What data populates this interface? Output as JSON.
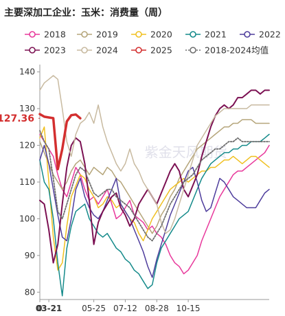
{
  "chart_data": {
    "type": "line",
    "title": "主要深加工企业：玉米：消费量（周）",
    "ylim": [
      78,
      142
    ],
    "yticks": [
      80,
      90,
      100,
      110,
      120,
      130,
      140
    ],
    "xlim": [
      1,
      52
    ],
    "xticks": [
      {
        "x": 1,
        "label": "0"
      },
      {
        "x": 3,
        "label": "03-21",
        "highlight": true
      },
      {
        "x": 13,
        "label": "05-25"
      },
      {
        "x": 20,
        "label": "07-12"
      },
      {
        "x": 27,
        "label": "08-28"
      },
      {
        "x": 34,
        "label": "10-15"
      }
    ],
    "callout": {
      "label": "127.36",
      "value": 127.36,
      "color": "#d32f2f"
    },
    "watermark": "紫金天风期货",
    "series": [
      {
        "name": "2018",
        "color": "#e8389b",
        "dash": "",
        "width": 1.5,
        "marker": "",
        "x": [
          1,
          2,
          3,
          4,
          5,
          6,
          7,
          8,
          9,
          10,
          11,
          12,
          13,
          14,
          15,
          16,
          17,
          18,
          19,
          20,
          21,
          22,
          23,
          24,
          25,
          26,
          27,
          28,
          29,
          30,
          31,
          32,
          33,
          34,
          35,
          36,
          37,
          38,
          39,
          40,
          41,
          42,
          43,
          44,
          45,
          46,
          47,
          48,
          49,
          50,
          51,
          52
        ],
        "y": [
          123,
          121,
          119,
          117,
          112,
          108,
          106,
          110,
          114,
          112,
          108,
          105,
          106,
          104,
          106,
          108,
          104,
          100,
          101,
          103,
          105,
          101,
          100,
          99,
          97,
          98,
          96,
          95,
          93,
          90,
          88,
          87,
          85,
          86,
          88,
          90,
          94,
          97,
          100,
          103,
          106,
          108,
          110,
          112,
          113,
          113,
          114,
          115,
          116,
          117,
          118,
          120
        ]
      },
      {
        "name": "2019",
        "color": "#b5a57a",
        "dash": "",
        "width": 1.5,
        "marker": "",
        "x": [
          1,
          2,
          3,
          4,
          5,
          6,
          7,
          8,
          9,
          10,
          11,
          12,
          13,
          14,
          15,
          16,
          17,
          18,
          19,
          20,
          21,
          22,
          23,
          24,
          25,
          26,
          27,
          28,
          29,
          30,
          31,
          32,
          33,
          34,
          35,
          36,
          37,
          38,
          39,
          40,
          41,
          42,
          43,
          44,
          45,
          46,
          47,
          48,
          49,
          50,
          51,
          52
        ],
        "y": [
          121,
          118,
          115,
          112,
          110,
          108,
          110,
          113,
          115,
          116,
          114,
          112,
          114,
          113,
          112,
          114,
          113,
          111,
          110,
          108,
          106,
          104,
          102,
          100,
          98,
          96,
          98,
          101,
          103,
          106,
          108,
          111,
          113,
          115,
          117,
          119,
          120,
          121,
          122,
          123,
          124,
          125,
          125,
          126,
          126,
          127,
          127,
          127,
          126,
          126,
          126,
          126
        ]
      },
      {
        "name": "2020",
        "color": "#f0c020",
        "dash": "",
        "width": 1.5,
        "marker": "",
        "x": [
          1,
          2,
          3,
          4,
          5,
          6,
          7,
          8,
          9,
          10,
          11,
          12,
          13,
          14,
          15,
          16,
          17,
          18,
          19,
          20,
          21,
          22,
          23,
          24,
          25,
          26,
          27,
          28,
          29,
          30,
          31,
          32,
          33,
          34,
          35,
          36,
          37,
          38,
          39,
          40,
          41,
          42,
          43,
          44,
          45,
          46,
          47,
          48,
          49,
          50,
          51,
          52
        ],
        "y": [
          122,
          125,
          110,
          95,
          86,
          88,
          98,
          106,
          109,
          112,
          111,
          108,
          106,
          103,
          104,
          106,
          105,
          103,
          104,
          102,
          100,
          99,
          96,
          94,
          97,
          100,
          102,
          104,
          106,
          108,
          109,
          110,
          111,
          110,
          111,
          112,
          113,
          113,
          114,
          114,
          115,
          116,
          116,
          117,
          116,
          115,
          116,
          117,
          117,
          116,
          115,
          114
        ]
      },
      {
        "name": "2021",
        "color": "#148a8a",
        "dash": "",
        "width": 1.5,
        "marker": "",
        "x": [
          1,
          2,
          3,
          4,
          5,
          6,
          7,
          8,
          9,
          10,
          11,
          12,
          13,
          14,
          15,
          16,
          17,
          18,
          19,
          20,
          21,
          22,
          23,
          24,
          25,
          26,
          27,
          28,
          29,
          30,
          31,
          32,
          33,
          34,
          35,
          36,
          37,
          38,
          39,
          40,
          41,
          42,
          43,
          44,
          45,
          46,
          47,
          48,
          49,
          50,
          51,
          52
        ],
        "y": [
          116,
          110,
          108,
          100,
          88,
          79,
          92,
          98,
          102,
          103,
          104,
          100,
          98,
          96,
          95,
          96,
          94,
          92,
          91,
          89,
          88,
          86,
          85,
          83,
          81,
          82,
          88,
          92,
          94,
          96,
          98,
          100,
          101,
          102,
          105,
          108,
          111,
          113,
          115,
          116,
          117,
          118,
          118,
          119,
          119,
          120,
          120,
          121,
          121,
          121,
          122,
          123
        ]
      },
      {
        "name": "2022",
        "color": "#4e3d9c",
        "dash": "",
        "width": 1.5,
        "marker": "circle",
        "x": [
          1,
          2,
          3,
          4,
          5,
          6,
          7,
          8,
          9,
          10,
          11,
          12,
          13,
          14,
          15,
          16,
          17,
          18,
          19,
          20,
          21,
          22,
          23,
          24,
          25,
          26,
          27,
          28,
          29,
          30,
          31,
          32,
          33,
          34,
          35,
          36,
          37,
          38,
          39,
          40,
          41,
          42,
          43,
          44,
          45,
          46,
          47,
          48,
          49,
          50,
          51,
          52
        ],
        "y": [
          116,
          120,
          115,
          108,
          101,
          95,
          94,
          100,
          108,
          111,
          106,
          103,
          101,
          100,
          102,
          105,
          108,
          111,
          104,
          102,
          100,
          97,
          94,
          91,
          87,
          84,
          89,
          93,
          97,
          101,
          104,
          107,
          110,
          113,
          114,
          110,
          105,
          102,
          103,
          107,
          111,
          110,
          108,
          106,
          105,
          104,
          103,
          103,
          103,
          105,
          107,
          108
        ]
      },
      {
        "name": "2023",
        "color": "#7b1052",
        "dash": "",
        "width": 2,
        "marker": "",
        "x": [
          1,
          2,
          3,
          4,
          5,
          6,
          7,
          8,
          9,
          10,
          11,
          12,
          13,
          14,
          15,
          16,
          17,
          18,
          19,
          20,
          21,
          22,
          23,
          24,
          25,
          26,
          27,
          28,
          29,
          30,
          31,
          32,
          33,
          34,
          35,
          36,
          37,
          38,
          39,
          40,
          41,
          42,
          43,
          44,
          45,
          46,
          47,
          48,
          49,
          50,
          51,
          52
        ],
        "y": [
          105,
          104,
          97,
          88,
          93,
          104,
          114,
          120,
          122,
          121,
          115,
          105,
          93,
          99,
          102,
          104,
          106,
          107,
          103,
          101,
          98,
          100,
          104,
          106,
          108,
          106,
          104,
          107,
          110,
          113,
          115,
          113,
          108,
          106,
          109,
          112,
          117,
          121,
          125,
          128,
          130,
          131,
          130,
          131,
          133,
          133,
          134,
          135,
          135,
          134,
          135,
          135
        ]
      },
      {
        "name": "2024",
        "color": "#c8baa0",
        "dash": "",
        "width": 1.5,
        "marker": "",
        "x": [
          1,
          2,
          3,
          4,
          5,
          6,
          7,
          8,
          9,
          10,
          11,
          12,
          13,
          14,
          15,
          16,
          17,
          18,
          19,
          20,
          21,
          22,
          23,
          24,
          25,
          26,
          27,
          28,
          29,
          30,
          31,
          32,
          33,
          34,
          35,
          36,
          37,
          38,
          39,
          40,
          41,
          42,
          43,
          44,
          45,
          46,
          47,
          48,
          49,
          50,
          51,
          52
        ],
        "y": [
          135,
          137,
          138,
          139,
          138,
          130,
          121,
          117,
          123,
          126,
          127,
          129,
          126,
          131,
          125,
          121,
          118,
          115,
          113,
          115,
          119,
          115,
          113,
          110,
          108,
          106,
          104,
          99,
          96,
          97,
          100,
          104,
          108,
          112,
          116,
          120,
          122,
          124,
          126,
          128,
          129,
          130,
          130,
          130,
          130,
          130,
          130,
          131,
          131,
          131,
          131,
          131
        ]
      },
      {
        "name": "2025",
        "color": "#d32f2f",
        "dash": "",
        "width": 3.5,
        "marker": "",
        "x": [
          1,
          2,
          3,
          4,
          5,
          6,
          7,
          8,
          9,
          10
        ],
        "y": [
          128.5,
          127.8,
          127.6,
          127.4,
          113.5,
          119,
          126.5,
          128.2,
          128.4,
          127.36
        ]
      },
      {
        "name": "2018-2024均值",
        "color": "#6e6e6e",
        "dash": "2,2",
        "width": 1.8,
        "marker": "",
        "x": [
          1,
          2,
          3,
          4,
          5,
          6,
          7,
          8,
          9,
          10,
          11,
          12,
          13,
          14,
          15,
          16,
          17,
          18,
          19,
          20,
          21,
          22,
          23,
          24,
          25,
          26,
          27,
          28,
          29,
          30,
          31,
          32,
          33,
          34,
          35,
          36,
          37,
          38,
          39,
          40,
          41,
          42,
          43,
          44,
          45,
          46,
          47,
          48,
          49,
          50,
          51,
          52
        ],
        "y": [
          124,
          121,
          119,
          111,
          102,
          100,
          104,
          108,
          112,
          114,
          113,
          110,
          107,
          106,
          107,
          108,
          108,
          106,
          105,
          104,
          103,
          101,
          99,
          97,
          95,
          94,
          96,
          98,
          101,
          104,
          106,
          108,
          110,
          111,
          112,
          114,
          116,
          117,
          118,
          119,
          119,
          120,
          121,
          121,
          122,
          121,
          121,
          121,
          121,
          121,
          121,
          121
        ]
      }
    ]
  },
  "legend_order": [
    [
      "2018",
      "2019",
      "2020",
      "2021",
      "2022"
    ],
    [
      "2023",
      "2024",
      "2025",
      "2018-2024均值"
    ]
  ]
}
